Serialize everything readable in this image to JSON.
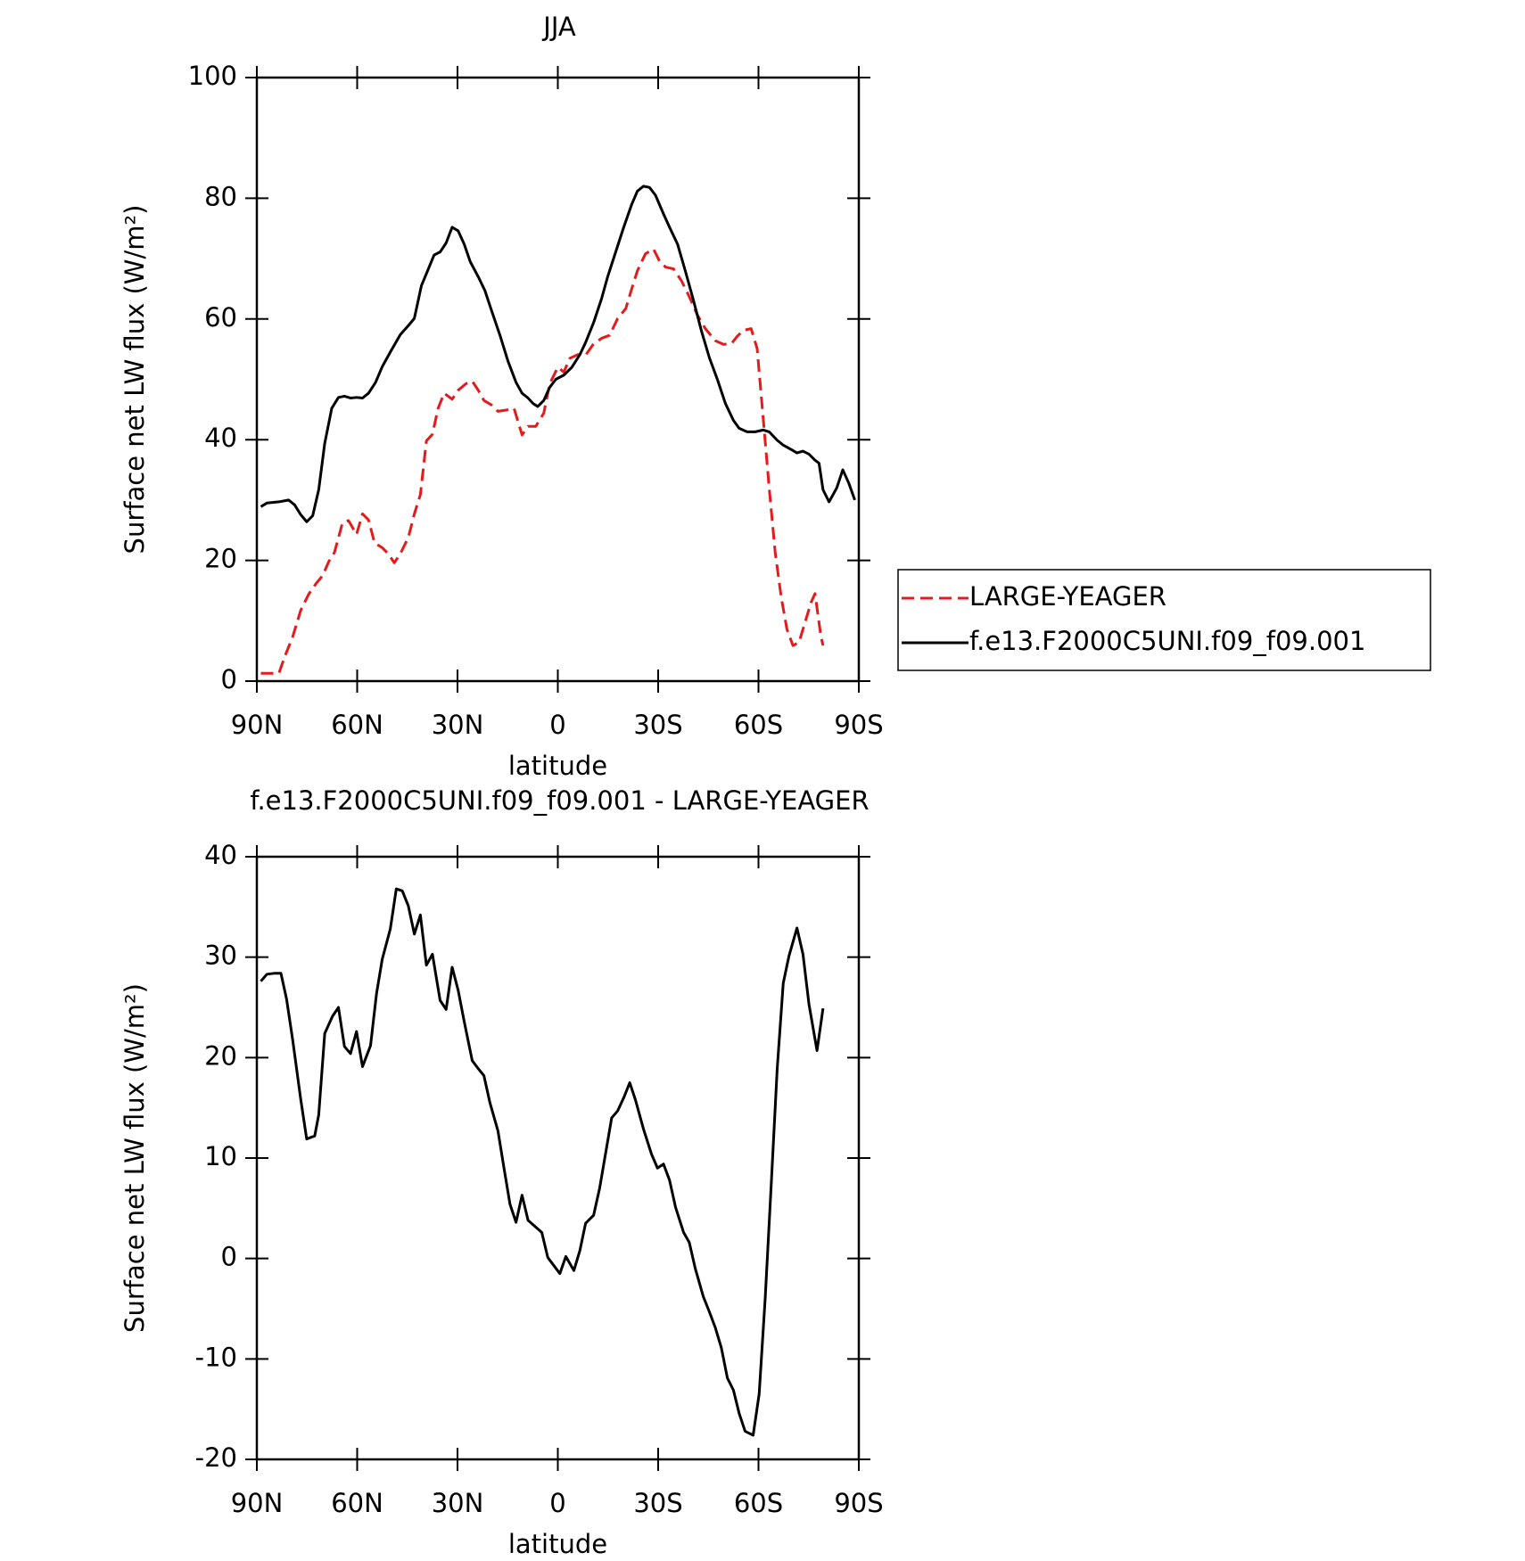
{
  "chart_data": [
    {
      "type": "line",
      "title": "JJA",
      "xlabel": "latitude",
      "ylabel": "Surface net LW flux (W/m²)",
      "xlim": [
        90,
        -90
      ],
      "xticks": [
        {
          "value": 90,
          "label": "90N"
        },
        {
          "value": 60,
          "label": "60N"
        },
        {
          "value": 30,
          "label": "30N"
        },
        0,
        {
          "value": -30,
          "label": "30S"
        },
        {
          "value": -60,
          "label": "60S"
        },
        {
          "value": -90,
          "label": "90S"
        }
      ],
      "ylim": [
        0,
        100
      ],
      "yticks": [
        0,
        20,
        40,
        60,
        80,
        100
      ],
      "legend": "right",
      "series": [
        {
          "name": "LARGE-YEAGER",
          "color": "#e41a1c",
          "dash": "dashed",
          "x": [
            88.8,
            86.4,
            83.4,
            81.7,
            79.3,
            76.9,
            74.5,
            72.1,
            70.3,
            68.5,
            66.8,
            64.4,
            62.6,
            60.2,
            58.4,
            56.6,
            54.8,
            52.5,
            50.7,
            48.9,
            47.1,
            44.7,
            42.9,
            41.1,
            39.3,
            37.5,
            35.8,
            34.0,
            31.6,
            29.8,
            27.4,
            25.6,
            23.8,
            22.1,
            19.7,
            17.9,
            15.5,
            13.1,
            10.7,
            8.9,
            6.6,
            4.2,
            2.4,
            0,
            -1.8,
            -3.6,
            -6.0,
            -8.3,
            -10.7,
            -13.1,
            -15.5,
            -17.9,
            -20.3,
            -22.1,
            -23.8,
            -26.2,
            -28.6,
            -30.4,
            -32.2,
            -34.6,
            -37.0,
            -39.3,
            -41.7,
            -44.1,
            -47.1,
            -49.5,
            -51.9,
            -53.6,
            -55.4,
            -57.8,
            -59.6,
            -61.4,
            -63.2,
            -65.0,
            -66.8,
            -68.5,
            -70.3,
            -72.1,
            -73.9,
            -75.7,
            -76.9,
            -78.7,
            -79.3
          ],
          "values": [
            1.3,
            1.3,
            1.3,
            4.0,
            7.3,
            11.7,
            14.4,
            16.3,
            17.5,
            19.8,
            21.3,
            26.2,
            26.6,
            24.3,
            27.7,
            26.7,
            22.9,
            22.1,
            21.1,
            19.6,
            21.1,
            23.8,
            27.7,
            30.9,
            39.8,
            40.9,
            45.2,
            47.7,
            46.7,
            48.2,
            49.3,
            49.7,
            48.2,
            46.5,
            45.7,
            44.7,
            44.9,
            45.2,
            40.8,
            42.2,
            42.2,
            44.4,
            49.3,
            52.0,
            51.2,
            53.5,
            54.1,
            54.0,
            55.9,
            56.8,
            57.3,
            60.1,
            61.7,
            65.0,
            68.0,
            70.8,
            71.6,
            69.6,
            68.6,
            68.3,
            66.3,
            63.7,
            60.7,
            58.4,
            56.4,
            55.8,
            55.9,
            57.1,
            58.1,
            58.4,
            55.1,
            43.6,
            32.0,
            21.3,
            13.9,
            8.6,
            5.9,
            6.4,
            9.7,
            13.0,
            14.5,
            7.3,
            5.9
          ]
        },
        {
          "name": "f.e13.F2000C5UNI.f09_f09.001",
          "color": "#000000",
          "dash": "solid",
          "x": [
            88.8,
            87.0,
            83.4,
            80.5,
            78.7,
            76.9,
            75.1,
            73.3,
            71.5,
            69.7,
            67.6,
            65.6,
            63.8,
            62.0,
            60.2,
            58.4,
            56.6,
            54.5,
            52.5,
            49.8,
            47.1,
            44.7,
            42.9,
            40.8,
            38.7,
            37.0,
            35.2,
            33.4,
            31.6,
            29.8,
            28.0,
            26.2,
            23.8,
            21.8,
            19.7,
            17.3,
            14.9,
            12.5,
            10.7,
            8.9,
            7.4,
            6.0,
            4.2,
            2.4,
            0.6,
            -1.8,
            -4.2,
            -6.6,
            -8.3,
            -10.7,
            -13.1,
            -14.9,
            -17.3,
            -19.7,
            -22.1,
            -23.8,
            -25.6,
            -27.4,
            -29.2,
            -31.6,
            -33.4,
            -35.8,
            -38.1,
            -40.5,
            -42.9,
            -45.3,
            -47.7,
            -50.1,
            -52.5,
            -54.2,
            -56.6,
            -59.0,
            -61.4,
            -63.2,
            -65.6,
            -67.4,
            -69.7,
            -71.5,
            -73.3,
            -75.1,
            -76.9,
            -78.1,
            -79.3,
            -81.1,
            -83.4,
            -85.2,
            -87.0,
            -88.8
          ],
          "values": [
            28.9,
            29.5,
            29.7,
            30.0,
            29.2,
            27.6,
            26.4,
            27.4,
            31.7,
            39.4,
            45.2,
            47.0,
            47.2,
            46.9,
            47.0,
            46.9,
            47.7,
            49.5,
            52.1,
            54.8,
            57.4,
            58.9,
            60.1,
            65.5,
            68.3,
            70.6,
            71.1,
            72.6,
            75.2,
            74.6,
            72.4,
            69.5,
            67.0,
            64.7,
            61.2,
            57.3,
            53.0,
            49.5,
            47.7,
            46.9,
            46.0,
            45.5,
            46.5,
            48.7,
            50.0,
            50.7,
            52.0,
            54.1,
            56.1,
            59.4,
            63.4,
            67.0,
            71.1,
            75.2,
            79.0,
            81.2,
            82.0,
            81.8,
            80.5,
            77.4,
            75.2,
            72.4,
            68.0,
            63.2,
            58.1,
            53.6,
            50.0,
            46.0,
            43.2,
            41.9,
            41.3,
            41.3,
            41.6,
            41.3,
            39.9,
            39.1,
            38.4,
            37.8,
            38.1,
            37.6,
            36.6,
            36.1,
            31.7,
            29.7,
            32.0,
            35.0,
            32.8,
            30.0
          ]
        }
      ]
    },
    {
      "type": "line",
      "title": "f.e13.F2000C5UNI.f09_f09.001 - LARGE-YEAGER",
      "xlabel": "latitude",
      "ylabel": "Surface net LW flux (W/m²)",
      "xlim": [
        90,
        -90
      ],
      "xticks": [
        {
          "value": 90,
          "label": "90N"
        },
        {
          "value": 60,
          "label": "60N"
        },
        {
          "value": 30,
          "label": "30N"
        },
        0,
        {
          "value": -30,
          "label": "30S"
        },
        {
          "value": -60,
          "label": "60S"
        },
        {
          "value": -90,
          "label": "90S"
        }
      ],
      "ylim": [
        -20,
        40
      ],
      "yticks": [
        -20,
        -10,
        0,
        10,
        20,
        30,
        40
      ],
      "series": [
        {
          "color": "#000000",
          "dash": "solid",
          "x": [
            88.8,
            87.0,
            84.6,
            82.8,
            81.1,
            79.3,
            76.9,
            75.1,
            72.7,
            71.5,
            69.7,
            67.4,
            65.6,
            63.8,
            62.0,
            60.2,
            58.4,
            56.0,
            54.2,
            52.5,
            50.1,
            48.3,
            46.5,
            44.7,
            42.9,
            41.1,
            39.3,
            37.5,
            35.2,
            33.4,
            31.6,
            29.8,
            28.0,
            25.6,
            23.8,
            22.1,
            20.3,
            17.9,
            16.1,
            14.3,
            12.5,
            10.7,
            8.9,
            7.2,
            4.8,
            3.0,
            1.2,
            -0.6,
            -2.4,
            -4.8,
            -6.6,
            -8.3,
            -10.7,
            -12.5,
            -14.3,
            -16.1,
            -17.9,
            -19.7,
            -21.5,
            -23.2,
            -25.6,
            -28.0,
            -29.8,
            -31.6,
            -33.4,
            -35.2,
            -37.6,
            -39.3,
            -41.1,
            -43.5,
            -45.3,
            -47.1,
            -48.9,
            -50.7,
            -52.5,
            -54.2,
            -56.0,
            -58.4,
            -60.2,
            -62.0,
            -63.8,
            -65.6,
            -67.4,
            -69.1,
            -71.5,
            -73.3,
            -75.1,
            -77.5,
            -79.3
          ],
          "values": [
            27.6,
            28.3,
            28.4,
            28.4,
            25.8,
            21.8,
            15.9,
            11.9,
            12.2,
            14.3,
            22.4,
            24.1,
            25.0,
            21.1,
            20.4,
            22.6,
            19.1,
            21.2,
            26.4,
            29.8,
            32.8,
            36.8,
            36.6,
            35.1,
            32.3,
            34.2,
            29.2,
            30.3,
            25.7,
            24.8,
            29.0,
            26.7,
            23.6,
            19.7,
            18.9,
            18.2,
            15.5,
            12.7,
            9.0,
            5.4,
            3.6,
            6.3,
            3.8,
            3.3,
            2.6,
            0.1,
            -0.7,
            -1.5,
            0.2,
            -1.2,
            0.8,
            3.5,
            4.3,
            7.0,
            10.5,
            14.0,
            14.7,
            16.0,
            17.5,
            15.8,
            12.9,
            10.4,
            9.0,
            9.4,
            7.8,
            5.1,
            2.6,
            1.6,
            -1.0,
            -3.8,
            -5.3,
            -6.9,
            -8.9,
            -11.9,
            -13.1,
            -15.4,
            -17.2,
            -17.6,
            -13.5,
            -4.0,
            7.3,
            18.9,
            27.4,
            30.1,
            32.9,
            30.3,
            25.3,
            20.7,
            24.9
          ]
        }
      ]
    }
  ]
}
